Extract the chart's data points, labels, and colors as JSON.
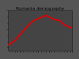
{
  "title": "Romania demography",
  "years": [
    1961,
    1966,
    1971,
    1976,
    1981,
    1986,
    1990,
    1996,
    2000,
    2004,
    2007,
    2010
  ],
  "population": [
    18.4,
    19.1,
    20.3,
    21.5,
    22.4,
    22.85,
    23.2,
    22.55,
    22.4,
    21.7,
    21.4,
    21.1
  ],
  "line_color": "#dd0000",
  "line_width": 1.5,
  "plot_bg_color": "#888888",
  "fig_bg_color": "#555555",
  "grid_color": "#444444",
  "grid_linewidth": 3.5,
  "xlim": [
    1961,
    2010
  ],
  "ylim": [
    17.5,
    24.0
  ],
  "title_fontsize": 4.5,
  "tick_fontsize": 3.0,
  "xlabel": "",
  "ylabel": ""
}
